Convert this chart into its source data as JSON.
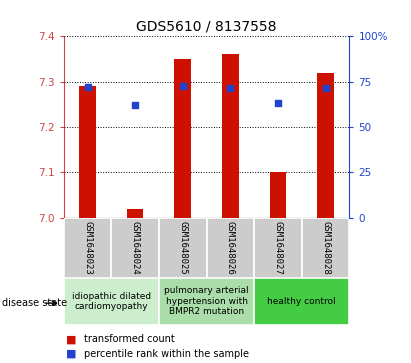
{
  "title": "GDS5610 / 8137558",
  "samples": [
    "GSM1648023",
    "GSM1648024",
    "GSM1648025",
    "GSM1648026",
    "GSM1648027",
    "GSM1648028"
  ],
  "transformed_count": [
    7.29,
    7.02,
    7.35,
    7.36,
    7.1,
    7.32
  ],
  "percentile_rank": [
    72.0,
    62.0,
    72.5,
    71.5,
    63.0,
    71.5
  ],
  "ylim_left": [
    7.0,
    7.4
  ],
  "ylim_right": [
    0,
    100
  ],
  "yticks_left": [
    7.0,
    7.1,
    7.2,
    7.3,
    7.4
  ],
  "yticks_right": [
    0,
    25,
    50,
    75,
    100
  ],
  "bar_color": "#cc1100",
  "dot_color": "#2244cc",
  "plot_bg_color": "#ffffff",
  "disease_groups": [
    {
      "label": "idiopathic dilated\ncardiomyopathy",
      "samples": [
        0,
        1
      ],
      "color": "#cceecc"
    },
    {
      "label": "pulmonary arterial\nhypertension with\nBMPR2 mutation",
      "samples": [
        2,
        3
      ],
      "color": "#aaddaa"
    },
    {
      "label": "healthy control",
      "samples": [
        4,
        5
      ],
      "color": "#44cc44"
    }
  ],
  "legend_items": [
    {
      "label": "transformed count",
      "color": "#cc1100"
    },
    {
      "label": "percentile rank within the sample",
      "color": "#2244cc"
    }
  ],
  "bar_width": 0.35,
  "left_tick_color": "#cc4444",
  "right_tick_color": "#2244cc",
  "sample_box_color": "#cccccc",
  "title_fontsize": 10,
  "tick_fontsize": 7.5,
  "sample_fontsize": 6.5,
  "disease_fontsize": 6.5,
  "legend_fontsize": 7
}
